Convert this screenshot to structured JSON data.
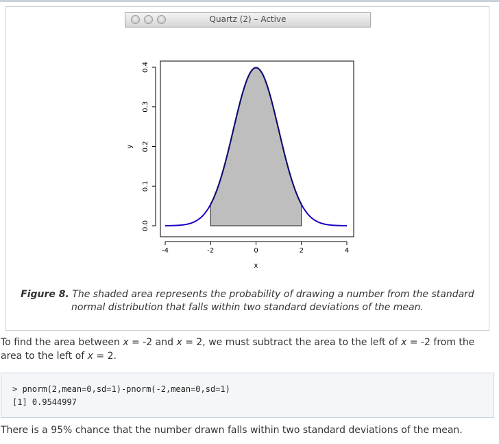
{
  "window": {
    "title": "Quartz (2) – Active"
  },
  "chart_data": {
    "type": "area",
    "title": "",
    "xlabel": "x",
    "ylabel": "y",
    "xlim": [
      -4,
      4
    ],
    "ylim": [
      0,
      0.4
    ],
    "x_ticks": [
      "-4",
      "-2",
      "0",
      "2",
      "4"
    ],
    "y_ticks": [
      "0.0",
      "0.1",
      "0.2",
      "0.3",
      "0.4"
    ],
    "grid": false,
    "series": [
      {
        "curve": "standard normal density",
        "x": [
          -4,
          -3.5,
          -3,
          -2.5,
          -2,
          -1.5,
          -1,
          -0.5,
          0,
          0.5,
          1,
          1.5,
          2,
          2.5,
          3,
          3.5,
          4
        ],
        "values": [
          0.0001,
          0.0009,
          0.0044,
          0.0175,
          0.054,
          0.1295,
          0.242,
          0.3521,
          0.3989,
          0.3521,
          0.242,
          0.1295,
          0.054,
          0.0175,
          0.0044,
          0.0009,
          0.0001
        ]
      }
    ],
    "shaded_region": [
      -2,
      2
    ],
    "colors": {
      "curve": "#1a00c8",
      "curve_shaded": "#10106a",
      "shade": "#bebebe"
    }
  },
  "caption": {
    "label": "Figure 8.",
    "text": " The shaded area represents the probability of drawing a number from the standard normal distribution that falls within two standard deviations of the mean."
  },
  "para1": {
    "s1": "To find the area between ",
    "v1": "x",
    "s2": " = -2 and ",
    "v2": "x",
    "s3": " = 2, we must subtract the area to the left of ",
    "v3": "x",
    "s4": " = -2 from the area to the left of ",
    "v4": "x",
    "s5": " = 2."
  },
  "code": {
    "line1": "> pnorm(2,mean=0,sd=1)-pnorm(-2,mean=0,sd=1)",
    "line2": "[1] 0.9544997"
  },
  "para2": {
    "text": "There is a 95% chance that the number drawn falls within two standard deviations of the mean."
  }
}
